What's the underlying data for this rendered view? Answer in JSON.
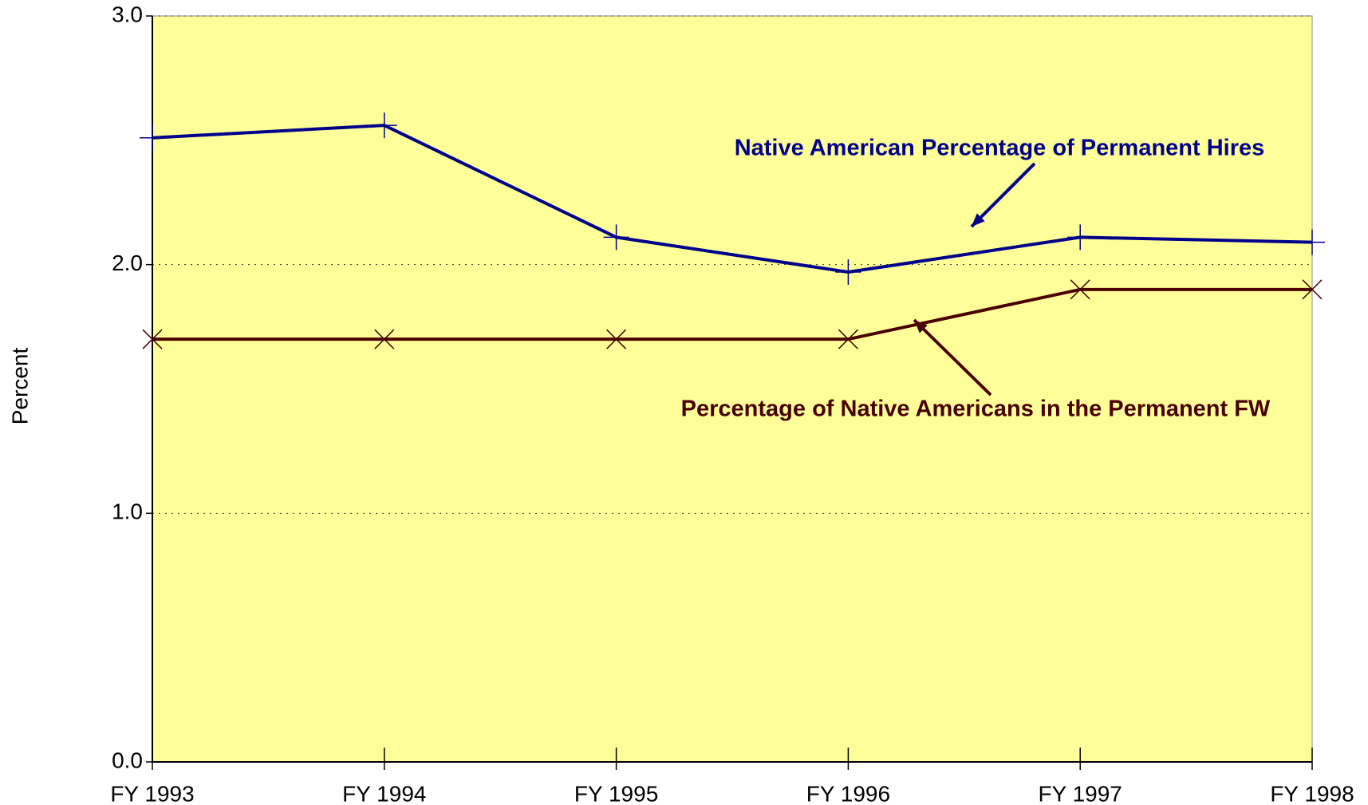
{
  "chart_data": {
    "type": "line",
    "y_label": "Percent",
    "categories": [
      "FY 1993",
      "FY 1994",
      "FY 1995",
      "FY 1996",
      "FY 1997",
      "FY 1998"
    ],
    "series": [
      {
        "name": "Native American Percentage of Permanent Hires",
        "color": "#00008b",
        "marker": "plus",
        "values": [
          2.51,
          2.56,
          2.11,
          1.97,
          2.11,
          2.09
        ]
      },
      {
        "name": "Percentage of Native Americans in the Permanent FW",
        "color": "#4b0000",
        "marker": "x",
        "values": [
          1.7,
          1.7,
          1.7,
          1.7,
          1.9,
          1.9
        ]
      }
    ],
    "ylim": [
      0,
      3
    ],
    "yticks": [
      {
        "value": 0,
        "label": "0.0"
      },
      {
        "value": 1,
        "label": "1.0"
      },
      {
        "value": 2,
        "label": "2.0"
      },
      {
        "value": 3,
        "label": "3.0"
      }
    ],
    "grid": true,
    "background": "#ffff99"
  }
}
